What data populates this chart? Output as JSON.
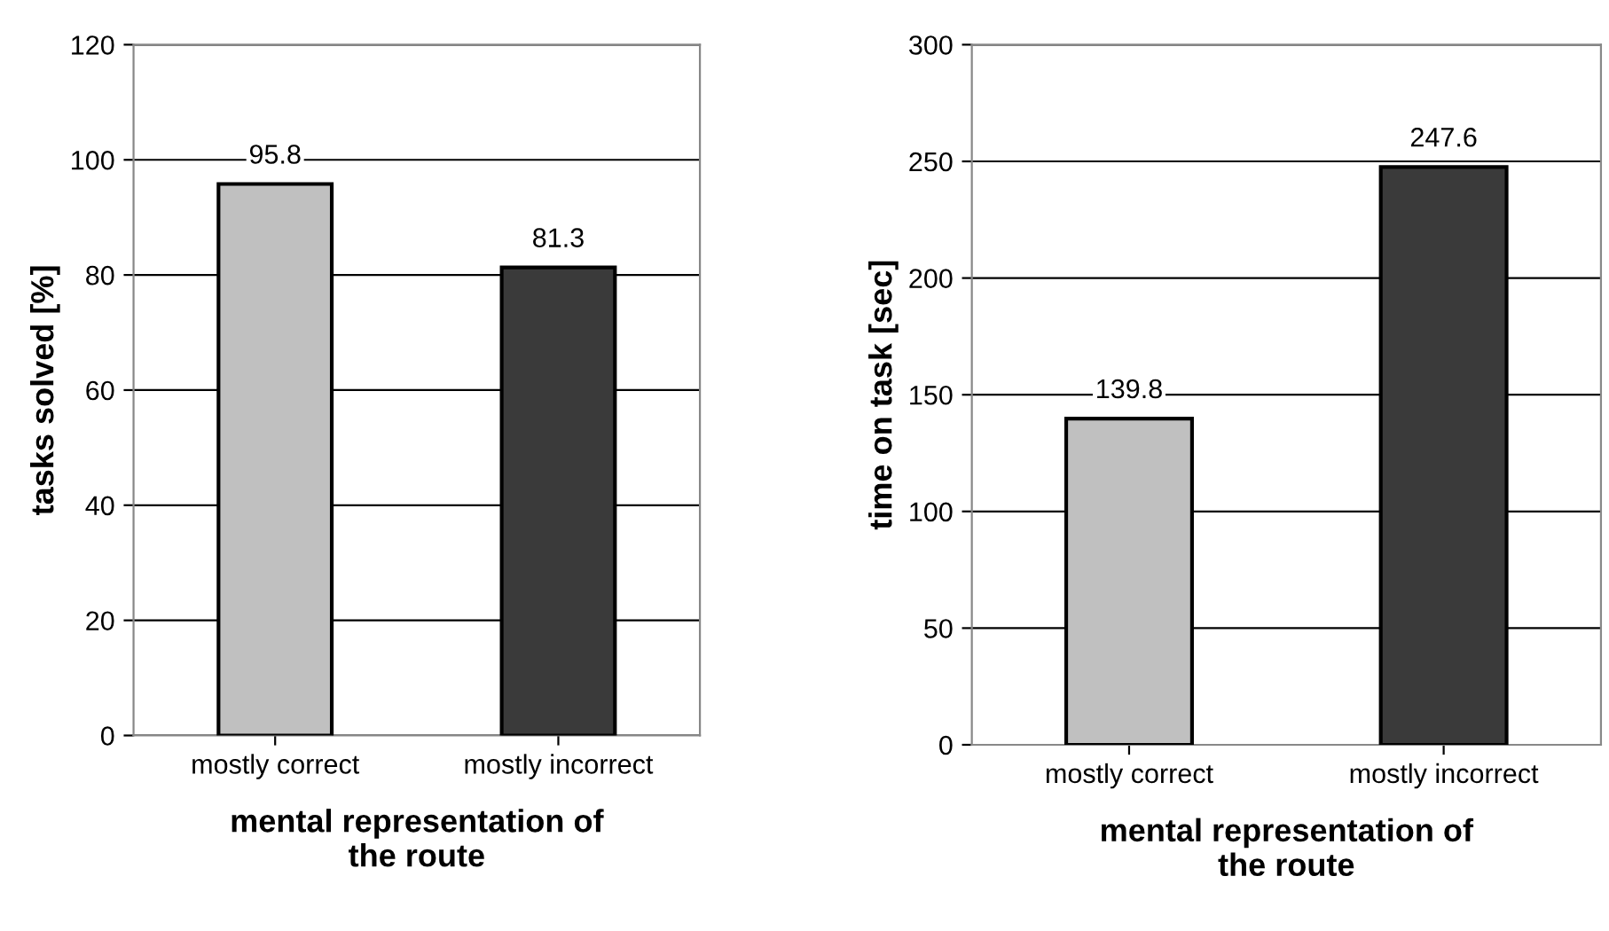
{
  "chart_data": [
    {
      "type": "bar",
      "categories": [
        "mostly correct",
        "mostly incorrect"
      ],
      "values": [
        95.8,
        81.3
      ],
      "colors": [
        "#c0c0c0",
        "#3a3a3a"
      ],
      "xlabel": "mental representation of\nthe route",
      "ylabel": "tasks solved [%]",
      "ylim": [
        0,
        120
      ],
      "yticks": [
        0,
        20,
        40,
        60,
        80,
        100,
        120
      ],
      "grid": "y",
      "data_labels": true
    },
    {
      "type": "bar",
      "categories": [
        "mostly correct",
        "mostly incorrect"
      ],
      "values": [
        139.8,
        247.6
      ],
      "colors": [
        "#c0c0c0",
        "#3a3a3a"
      ],
      "xlabel": "mental representation of\nthe route",
      "ylabel": "time on task [sec]",
      "ylim": [
        0,
        300
      ],
      "yticks": [
        0,
        50,
        100,
        150,
        200,
        250,
        300
      ],
      "grid": "y",
      "data_labels": true
    }
  ]
}
